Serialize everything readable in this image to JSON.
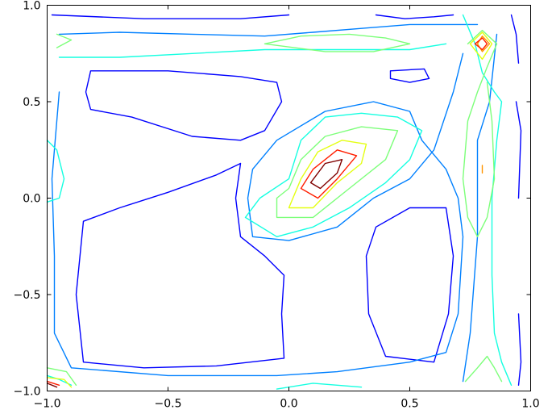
{
  "chart_data": {
    "type": "contour",
    "title": "",
    "xlabel": "",
    "ylabel": "",
    "xlim": [
      -1.0,
      1.0
    ],
    "ylim": [
      -1.0,
      1.0
    ],
    "grid": false,
    "legend": "none",
    "x_ticks": [
      "−1.0",
      "−0.5",
      "0.0",
      "0.5",
      "1.0"
    ],
    "x_tick_values": [
      -1.0,
      -0.5,
      0.0,
      0.5,
      1.0
    ],
    "y_ticks": [
      "−1.0",
      "−0.5",
      "0.0",
      "0.5",
      "1.0"
    ],
    "y_tick_values": [
      -1.0,
      -0.5,
      0.0,
      0.5,
      1.0
    ],
    "level_colors": [
      "#00007f",
      "#0000ff",
      "#0080ff",
      "#15ffe1",
      "#7dff7a",
      "#e4ff12",
      "#ff9400",
      "#ff1e00",
      "#7f0000"
    ],
    "contours": [
      {
        "level": 1,
        "points": [
          [
            -0.98,
            0.95
          ],
          [
            -0.6,
            0.93
          ],
          [
            -0.2,
            0.93
          ],
          [
            0.0,
            0.95
          ]
        ]
      },
      {
        "level": 1,
        "points": [
          [
            0.36,
            0.95
          ],
          [
            0.48,
            0.93
          ],
          [
            0.6,
            0.94
          ],
          [
            0.68,
            0.95
          ]
        ]
      },
      {
        "level": 1,
        "points": [
          [
            0.92,
            0.95
          ],
          [
            0.94,
            0.85
          ],
          [
            0.95,
            0.7
          ]
        ]
      },
      {
        "level": 1,
        "points": [
          [
            -0.82,
            0.66
          ],
          [
            -0.5,
            0.66
          ],
          [
            -0.2,
            0.63
          ],
          [
            -0.05,
            0.6
          ],
          [
            -0.03,
            0.5
          ],
          [
            -0.1,
            0.35
          ],
          [
            -0.2,
            0.3
          ],
          [
            -0.4,
            0.32
          ],
          [
            -0.65,
            0.42
          ],
          [
            -0.82,
            0.46
          ],
          [
            -0.84,
            0.55
          ],
          [
            -0.82,
            0.66
          ]
        ]
      },
      {
        "level": 1,
        "points": [
          [
            0.42,
            0.66
          ],
          [
            0.56,
            0.67
          ],
          [
            0.58,
            0.62
          ],
          [
            0.5,
            0.6
          ],
          [
            0.42,
            0.62
          ],
          [
            0.42,
            0.66
          ]
        ]
      },
      {
        "level": 1,
        "points": [
          [
            -0.2,
            0.18
          ],
          [
            -0.3,
            0.12
          ],
          [
            -0.5,
            0.03
          ],
          [
            -0.7,
            -0.05
          ],
          [
            -0.85,
            -0.12
          ],
          [
            -0.88,
            -0.5
          ],
          [
            -0.85,
            -0.85
          ],
          [
            -0.6,
            -0.88
          ],
          [
            -0.3,
            -0.87
          ],
          [
            -0.02,
            -0.83
          ],
          [
            -0.03,
            -0.6
          ],
          [
            -0.02,
            -0.4
          ],
          [
            -0.1,
            -0.3
          ],
          [
            -0.2,
            -0.2
          ],
          [
            -0.22,
            0.0
          ],
          [
            -0.2,
            0.18
          ]
        ]
      },
      {
        "level": 1,
        "points": [
          [
            0.36,
            -0.15
          ],
          [
            0.5,
            -0.05
          ],
          [
            0.65,
            -0.05
          ],
          [
            0.68,
            -0.3
          ],
          [
            0.66,
            -0.6
          ],
          [
            0.6,
            -0.85
          ],
          [
            0.4,
            -0.82
          ],
          [
            0.33,
            -0.6
          ],
          [
            0.32,
            -0.3
          ],
          [
            0.36,
            -0.15
          ]
        ]
      },
      {
        "level": 1,
        "points": [
          [
            0.94,
            0.5
          ],
          [
            0.96,
            0.35
          ],
          [
            0.95,
            0.0
          ]
        ]
      },
      {
        "level": 1,
        "points": [
          [
            0.95,
            -0.6
          ],
          [
            0.96,
            -0.85
          ],
          [
            0.95,
            -0.97
          ]
        ]
      },
      {
        "level": 2,
        "points": [
          [
            -0.95,
            0.85
          ],
          [
            -0.7,
            0.86
          ],
          [
            -0.4,
            0.85
          ],
          [
            -0.1,
            0.84
          ],
          [
            0.1,
            0.86
          ],
          [
            0.3,
            0.88
          ],
          [
            0.5,
            0.9
          ],
          [
            0.65,
            0.9
          ],
          [
            0.78,
            0.9
          ]
        ]
      },
      {
        "level": 2,
        "points": [
          [
            -0.95,
            0.55
          ],
          [
            -0.98,
            0.1
          ],
          [
            -0.97,
            -0.3
          ],
          [
            -0.97,
            -0.7
          ],
          [
            -0.9,
            -0.88
          ],
          [
            -0.5,
            -0.92
          ],
          [
            -0.05,
            -0.92
          ],
          [
            0.2,
            -0.9
          ],
          [
            0.5,
            -0.85
          ],
          [
            0.65,
            -0.8
          ],
          [
            0.7,
            -0.6
          ],
          [
            0.72,
            -0.2
          ],
          [
            0.7,
            0.0
          ],
          [
            0.65,
            0.15
          ],
          [
            0.55,
            0.3
          ],
          [
            0.5,
            0.45
          ],
          [
            0.35,
            0.5
          ],
          [
            0.15,
            0.45
          ],
          [
            -0.05,
            0.3
          ],
          [
            -0.15,
            0.15
          ],
          [
            -0.17,
            0.0
          ],
          [
            -0.15,
            -0.2
          ],
          [
            0.0,
            -0.22
          ],
          [
            0.2,
            -0.15
          ],
          [
            0.35,
            0.0
          ],
          [
            0.5,
            0.1
          ],
          [
            0.6,
            0.25
          ],
          [
            0.68,
            0.55
          ],
          [
            0.72,
            0.75
          ]
        ]
      },
      {
        "level": 2,
        "points": [
          [
            0.86,
            0.85
          ],
          [
            0.83,
            0.5
          ],
          [
            0.78,
            0.3
          ],
          [
            0.78,
            -0.2
          ],
          [
            0.75,
            -0.7
          ],
          [
            0.72,
            -0.95
          ]
        ]
      },
      {
        "level": 3,
        "points": [
          [
            -0.95,
            0.73
          ],
          [
            -0.7,
            0.73
          ],
          [
            -0.4,
            0.75
          ],
          [
            -0.1,
            0.77
          ],
          [
            0.2,
            0.77
          ],
          [
            0.5,
            0.77
          ],
          [
            0.65,
            0.8
          ]
        ]
      },
      {
        "level": 3,
        "points": [
          [
            -1.0,
            0.3
          ],
          [
            -0.96,
            0.25
          ],
          [
            -0.93,
            0.1
          ],
          [
            -0.95,
            0.0
          ],
          [
            -1.0,
            -0.02
          ]
        ]
      },
      {
        "level": 3,
        "points": [
          [
            -1.0,
            -0.92
          ],
          [
            -0.95,
            -0.94
          ],
          [
            -0.9,
            -0.97
          ]
        ]
      },
      {
        "level": 3,
        "points": [
          [
            -0.05,
            -0.99
          ],
          [
            0.1,
            -0.96
          ],
          [
            0.3,
            -0.98
          ]
        ]
      },
      {
        "level": 3,
        "points": [
          [
            0.0,
            0.1
          ],
          [
            0.05,
            0.3
          ],
          [
            0.15,
            0.42
          ],
          [
            0.3,
            0.44
          ],
          [
            0.45,
            0.42
          ],
          [
            0.55,
            0.35
          ],
          [
            0.5,
            0.2
          ],
          [
            0.4,
            0.08
          ],
          [
            0.25,
            -0.05
          ],
          [
            0.1,
            -0.15
          ],
          [
            -0.05,
            -0.2
          ],
          [
            -0.18,
            -0.1
          ],
          [
            -0.12,
            0.0
          ],
          [
            0.0,
            0.1
          ]
        ]
      },
      {
        "level": 3,
        "points": [
          [
            0.72,
            0.95
          ],
          [
            0.77,
            0.8
          ],
          [
            0.8,
            0.65
          ],
          [
            0.85,
            0.55
          ],
          [
            0.88,
            0.5
          ],
          [
            0.86,
            0.3
          ],
          [
            0.84,
            0.0
          ],
          [
            0.84,
            -0.4
          ],
          [
            0.85,
            -0.7
          ],
          [
            0.88,
            -0.85
          ],
          [
            0.92,
            -0.97
          ]
        ]
      },
      {
        "level": 4,
        "points": [
          [
            -0.96,
            0.85
          ],
          [
            -0.9,
            0.82
          ],
          [
            -0.96,
            0.78
          ]
        ]
      },
      {
        "level": 4,
        "points": [
          [
            -0.1,
            0.8
          ],
          [
            0.05,
            0.84
          ],
          [
            0.25,
            0.85
          ],
          [
            0.4,
            0.83
          ],
          [
            0.5,
            0.8
          ],
          [
            0.35,
            0.76
          ],
          [
            0.15,
            0.76
          ],
          [
            -0.1,
            0.8
          ]
        ]
      },
      {
        "level": 4,
        "points": [
          [
            0.74,
            0.8
          ],
          [
            0.8,
            0.87
          ],
          [
            0.86,
            0.8
          ],
          [
            0.82,
            0.68
          ],
          [
            0.78,
            0.55
          ],
          [
            0.74,
            0.4
          ],
          [
            0.72,
            0.1
          ],
          [
            0.74,
            -0.1
          ],
          [
            0.78,
            -0.2
          ],
          [
            0.82,
            -0.1
          ],
          [
            0.85,
            0.1
          ],
          [
            0.84,
            0.4
          ],
          [
            0.82,
            0.6
          ]
        ]
      },
      {
        "level": 4,
        "points": [
          [
            0.0,
            0.05
          ],
          [
            0.05,
            0.2
          ],
          [
            0.15,
            0.32
          ],
          [
            0.3,
            0.37
          ],
          [
            0.45,
            0.35
          ],
          [
            0.4,
            0.2
          ],
          [
            0.25,
            0.05
          ],
          [
            0.1,
            -0.1
          ],
          [
            -0.05,
            -0.1
          ],
          [
            -0.05,
            0.0
          ],
          [
            0.0,
            0.05
          ]
        ]
      },
      {
        "level": 4,
        "points": [
          [
            0.73,
            -0.95
          ],
          [
            0.78,
            -0.88
          ],
          [
            0.82,
            -0.82
          ],
          [
            0.85,
            -0.88
          ],
          [
            0.88,
            -0.95
          ]
        ]
      },
      {
        "level": 4,
        "points": [
          [
            -1.0,
            -0.88
          ],
          [
            -0.92,
            -0.9
          ],
          [
            -0.88,
            -0.97
          ]
        ]
      },
      {
        "level": 5,
        "points": [
          [
            0.05,
            0.1
          ],
          [
            0.12,
            0.24
          ],
          [
            0.22,
            0.3
          ],
          [
            0.32,
            0.28
          ],
          [
            0.3,
            0.18
          ],
          [
            0.2,
            0.08
          ],
          [
            0.1,
            -0.05
          ],
          [
            0.0,
            -0.05
          ],
          [
            0.05,
            0.1
          ]
        ]
      },
      {
        "level": 5,
        "points": [
          [
            0.75,
            0.8
          ],
          [
            0.8,
            0.86
          ],
          [
            0.84,
            0.8
          ],
          [
            0.8,
            0.72
          ],
          [
            0.75,
            0.8
          ]
        ]
      },
      {
        "level": 5,
        "points": [
          [
            -1.0,
            -0.93
          ],
          [
            -0.93,
            -0.94
          ],
          [
            -0.9,
            -0.98
          ]
        ]
      },
      {
        "level": 6,
        "points": [
          [
            0.78,
            0.8
          ],
          [
            0.8,
            0.84
          ],
          [
            0.83,
            0.8
          ],
          [
            0.8,
            0.76
          ],
          [
            0.78,
            0.8
          ]
        ]
      },
      {
        "level": 6,
        "points": [
          [
            0.8,
            0.17
          ],
          [
            0.8,
            0.13
          ]
        ]
      },
      {
        "level": 7,
        "points": [
          [
            0.05,
            0.05
          ],
          [
            0.1,
            0.15
          ],
          [
            0.2,
            0.25
          ],
          [
            0.28,
            0.22
          ],
          [
            0.2,
            0.1
          ],
          [
            0.12,
            0.0
          ],
          [
            0.05,
            0.05
          ]
        ]
      },
      {
        "level": 7,
        "points": [
          [
            0.77,
            0.8
          ],
          [
            0.8,
            0.83
          ],
          [
            0.82,
            0.8
          ],
          [
            0.8,
            0.77
          ],
          [
            0.77,
            0.8
          ]
        ]
      },
      {
        "level": 7,
        "points": [
          [
            -1.0,
            -0.95
          ],
          [
            -0.95,
            -0.97
          ]
        ]
      },
      {
        "level": 8,
        "points": [
          [
            0.09,
            0.08
          ],
          [
            0.15,
            0.18
          ],
          [
            0.22,
            0.2
          ],
          [
            0.2,
            0.13
          ],
          [
            0.13,
            0.05
          ],
          [
            0.09,
            0.08
          ]
        ]
      },
      {
        "level": 8,
        "points": [
          [
            -1.0,
            -0.96
          ],
          [
            -0.96,
            -0.98
          ]
        ]
      }
    ]
  }
}
